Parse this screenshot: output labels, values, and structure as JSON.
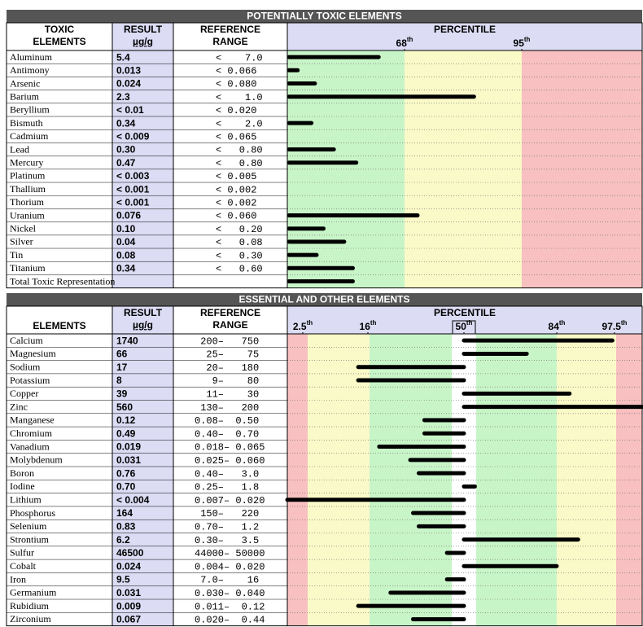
{
  "toxic": {
    "title": "POTENTIALLY TOXIC ELEMENTS",
    "headers": {
      "element": [
        "TOXIC",
        "ELEMENTS"
      ],
      "result": [
        "RESULT",
        "µg/g"
      ],
      "reference": [
        "REFERENCE",
        "RANGE"
      ],
      "percentile": "PERCENTILE"
    },
    "markers": [
      {
        "value": 68,
        "label": "68",
        "sup": "th"
      },
      {
        "value": 95,
        "label": "95",
        "sup": "th"
      }
    ],
    "rows": [
      {
        "element": "Aluminum",
        "result": "5.4",
        "reference": "<    7.0",
        "percentile": 53
      },
      {
        "element": "Antimony",
        "result": "0.013",
        "reference": "< 0.066",
        "percentile": 6
      },
      {
        "element": "Arsenic",
        "result": "0.024",
        "reference": "< 0.080",
        "percentile": 16
      },
      {
        "element": "Barium",
        "result": "2.3",
        "reference": "<    1.0",
        "percentile": 84
      },
      {
        "element": "Beryllium",
        "result": "< 0.01",
        "reference": "< 0.020",
        "percentile": null
      },
      {
        "element": "Bismuth",
        "result": "0.34",
        "reference": "<    2.0",
        "percentile": 14
      },
      {
        "element": "Cadmium",
        "result": "< 0.009",
        "reference": "< 0.065",
        "percentile": null
      },
      {
        "element": "Lead",
        "result": "0.30",
        "reference": "<   0.80",
        "percentile": 27
      },
      {
        "element": "Mercury",
        "result": "0.47",
        "reference": "<   0.80",
        "percentile": 40
      },
      {
        "element": "Platinum",
        "result": "< 0.003",
        "reference": "< 0.005",
        "percentile": null
      },
      {
        "element": "Thallium",
        "result": "< 0.001",
        "reference": "< 0.002",
        "percentile": null
      },
      {
        "element": "Thorium",
        "result": "< 0.001",
        "reference": "< 0.002",
        "percentile": null
      },
      {
        "element": "Uranium",
        "result": "0.076",
        "reference": "< 0.060",
        "percentile": 71
      },
      {
        "element": "Nickel",
        "result": "0.10",
        "reference": "<   0.20",
        "percentile": 21
      },
      {
        "element": "Silver",
        "result": "0.04",
        "reference": "<   0.08",
        "percentile": 33
      },
      {
        "element": "Tin",
        "result": "0.08",
        "reference": "<   0.30",
        "percentile": 17
      },
      {
        "element": "Titanium",
        "result": "0.34",
        "reference": "<   0.60",
        "percentile": 38
      }
    ],
    "total": {
      "element": "Total Toxic Representation",
      "percentile": 38
    }
  },
  "essential": {
    "title": "ESSENTIAL AND OTHER ELEMENTS",
    "headers": {
      "element": "ELEMENTS",
      "result": [
        "RESULT",
        "µg/g"
      ],
      "reference": [
        "REFERENCE",
        "RANGE"
      ],
      "percentile": "PERCENTILE"
    },
    "markers": [
      {
        "value": 2.5,
        "label": "2.5",
        "sup": "th"
      },
      {
        "value": 16,
        "label": "16",
        "sup": "th"
      },
      {
        "value": 50,
        "label": "50",
        "sup": "th"
      },
      {
        "value": 84,
        "label": "84",
        "sup": "th"
      },
      {
        "value": 97.5,
        "label": "97.5",
        "sup": "th"
      }
    ],
    "rows": [
      {
        "element": "Calcium",
        "result": "1740",
        "reference": " 200–   750",
        "percentile": 97
      },
      {
        "element": "Magnesium",
        "result": "66",
        "reference": "  25–    75",
        "percentile": 73
      },
      {
        "element": "Sodium",
        "result": "17",
        "reference": "  20–   180",
        "percentile": 14
      },
      {
        "element": "Potassium",
        "result": "8",
        "reference": "   9–    80",
        "percentile": 14
      },
      {
        "element": "Copper",
        "result": "39",
        "reference": "  11–    30",
        "percentile": 87
      },
      {
        "element": "Zinc",
        "result": "560",
        "reference": " 130–   200",
        "percentile": 100
      },
      {
        "element": "Manganese",
        "result": "0.12",
        "reference": "0.08–  0.50",
        "percentile": 36
      },
      {
        "element": "Chromium",
        "result": "0.49",
        "reference": "0.40–  0.70",
        "percentile": 36
      },
      {
        "element": "Vanadium",
        "result": "0.019",
        "reference": "0.018– 0.065",
        "percentile": 20
      },
      {
        "element": "Molybdenum",
        "result": "0.031",
        "reference": "0.025– 0.060",
        "percentile": 31
      },
      {
        "element": "Boron",
        "result": "0.76",
        "reference": "0.40–   3.0",
        "percentile": 34
      },
      {
        "element": "Iodine",
        "result": "0.70",
        "reference": "0.25–   1.8",
        "percentile": 54
      },
      {
        "element": "Lithium",
        "result": "< 0.004",
        "reference": "0.007– 0.020",
        "percentile": 0
      },
      {
        "element": "Phosphorus",
        "result": "164",
        "reference": " 150–   220",
        "percentile": 32
      },
      {
        "element": "Selenium",
        "result": "0.83",
        "reference": "0.70–   1.2",
        "percentile": 34
      },
      {
        "element": "Strontium",
        "result": "6.2",
        "reference": "0.30–   3.5",
        "percentile": 89
      },
      {
        "element": "Sulfur",
        "result": "46500",
        "reference": "44000– 50000",
        "percentile": 44
      },
      {
        "element": "Cobalt",
        "result": "0.024",
        "reference": "0.004– 0.020",
        "percentile": 84
      },
      {
        "element": "Iron",
        "result": "9.5",
        "reference": " 7.0–    16",
        "percentile": 44
      },
      {
        "element": "Germanium",
        "result": "0.031",
        "reference": "0.030– 0.040",
        "percentile": 24
      },
      {
        "element": "Rubidium",
        "result": "0.009",
        "reference": "0.011–  0.12",
        "percentile": 14
      },
      {
        "element": "Zirconium",
        "result": "0.067",
        "reference": "0.020–  0.44",
        "percentile": 32
      }
    ]
  }
}
